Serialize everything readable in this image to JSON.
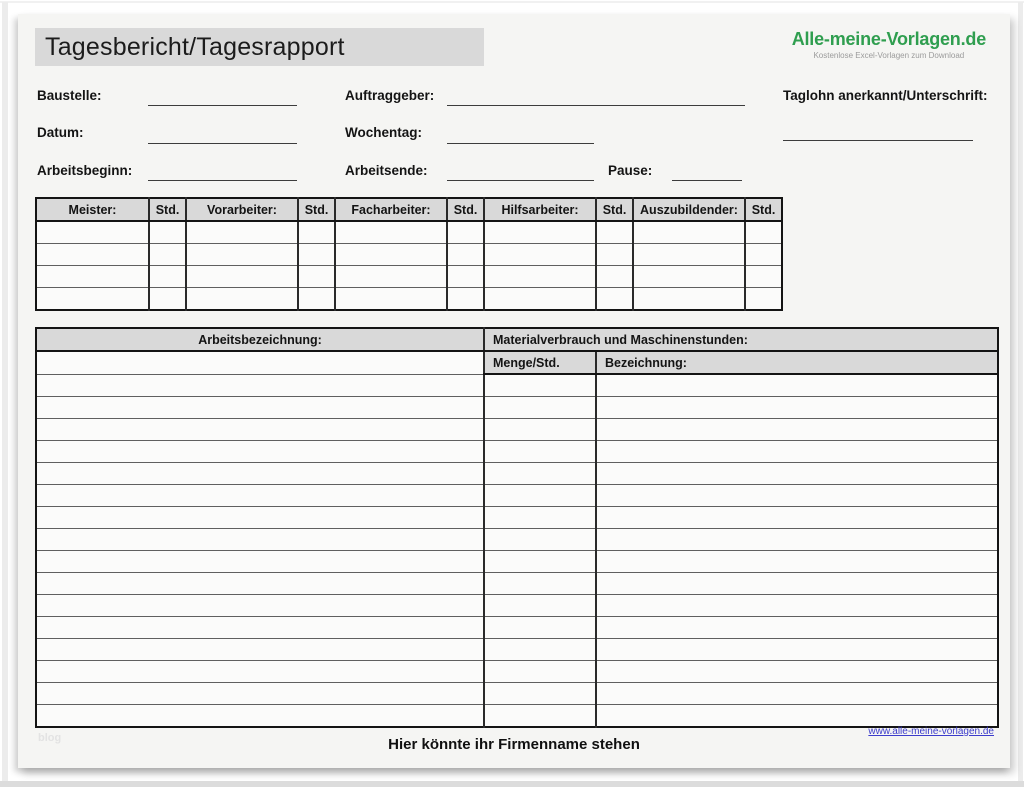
{
  "page": {
    "title": "Tagesbericht/Tagesrapport",
    "logo": {
      "text": "Alle-meine-Vorlagen.de",
      "tagline": "Kostenlose Excel-Vorlagen zum Download"
    },
    "colors": {
      "logo_green": "#2f9e4f",
      "header_gray": "#d9d9d9",
      "link_blue": "#3c3ccc"
    }
  },
  "form": {
    "baustelle_label": "Baustelle:",
    "datum_label": "Datum:",
    "arbeitsbeginn_label": "Arbeitsbeginn:",
    "auftraggeber_label": "Auftraggeber:",
    "wochentag_label": "Wochentag:",
    "arbeitsende_label": "Arbeitsende:",
    "pause_label": "Pause:",
    "taglohn_label": "Taglohn anerkannt/Unterschrift:"
  },
  "staff_table": {
    "columns": [
      "Meister:",
      "Std.",
      "Vorarbeiter:",
      "Std.",
      "Facharbeiter:",
      "Std.",
      "Hilfsarbeiter:",
      "Std.",
      "Auszubildender:",
      "Std."
    ],
    "empty_rows": 4
  },
  "work_table": {
    "left_header": "Arbeitsbezeichnung:",
    "right_header": "Materialverbrauch und Maschinenstunden:",
    "menge_header": "Menge/Std.",
    "bezeichnung_header": "Bezeichnung:",
    "empty_rows": 16
  },
  "footer": {
    "company_placeholder": "Hier könnte ihr Firmenname stehen",
    "website_link": "www.alle-meine-vorlagen.de",
    "watermark": "blog"
  }
}
